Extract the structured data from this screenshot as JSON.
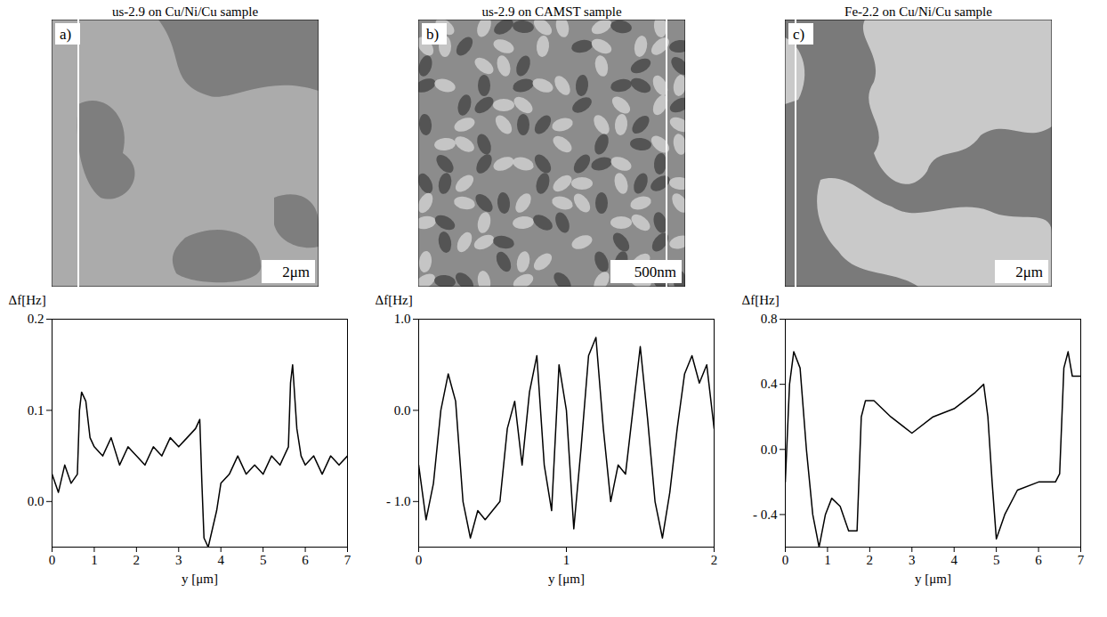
{
  "chart_data": [
    {
      "type": "line",
      "title": "us-2.9 on Cu/Ni/Cu sample",
      "annotations": {
        "panel": "a)",
        "scale_bar": "2μm"
      },
      "xlabel": "y [μm]",
      "ylabel": "Δf[Hz]",
      "color": "#000000",
      "x": [
        0,
        0.15,
        0.3,
        0.45,
        0.6,
        0.65,
        0.7,
        0.8,
        0.9,
        1.0,
        1.2,
        1.4,
        1.6,
        1.8,
        2.0,
        2.2,
        2.4,
        2.6,
        2.8,
        3.0,
        3.2,
        3.4,
        3.5,
        3.55,
        3.6,
        3.7,
        3.8,
        3.9,
        4.0,
        4.2,
        4.4,
        4.6,
        4.8,
        5.0,
        5.2,
        5.4,
        5.6,
        5.65,
        5.7,
        5.8,
        5.9,
        6.0,
        6.2,
        6.4,
        6.6,
        6.8,
        7.0
      ],
      "values": [
        0.03,
        0.01,
        0.04,
        0.02,
        0.03,
        0.1,
        0.12,
        0.11,
        0.07,
        0.06,
        0.05,
        0.07,
        0.04,
        0.06,
        0.05,
        0.04,
        0.06,
        0.05,
        0.07,
        0.06,
        0.07,
        0.08,
        0.09,
        0.02,
        -0.04,
        -0.05,
        -0.03,
        -0.01,
        0.02,
        0.03,
        0.05,
        0.03,
        0.04,
        0.03,
        0.05,
        0.04,
        0.06,
        0.13,
        0.15,
        0.08,
        0.05,
        0.04,
        0.05,
        0.03,
        0.05,
        0.04,
        0.05
      ],
      "xlim": [
        0,
        7
      ],
      "ylim": [
        -0.05,
        0.2
      ],
      "xticks": [
        0,
        1,
        2,
        3,
        4,
        5,
        6,
        7
      ],
      "yticks": [
        {
          "value": 0,
          "label": "0.0"
        },
        0.1,
        0.2
      ]
    },
    {
      "type": "line",
      "title": "us-2.9 on CAMST sample",
      "annotations": {
        "panel": "b)",
        "scale_bar": "500nm"
      },
      "xlabel": "y [μm]",
      "ylabel": "Δf[Hz]",
      "color": "#000000",
      "x": [
        0,
        0.05,
        0.1,
        0.15,
        0.2,
        0.25,
        0.3,
        0.35,
        0.4,
        0.45,
        0.5,
        0.55,
        0.6,
        0.65,
        0.7,
        0.75,
        0.8,
        0.85,
        0.9,
        0.95,
        1.0,
        1.05,
        1.1,
        1.15,
        1.2,
        1.25,
        1.3,
        1.35,
        1.4,
        1.45,
        1.5,
        1.55,
        1.6,
        1.65,
        1.7,
        1.75,
        1.8,
        1.85,
        1.9,
        1.95,
        2.0
      ],
      "values": [
        -0.6,
        -1.2,
        -0.8,
        0.0,
        0.4,
        0.1,
        -1.0,
        -1.4,
        -1.1,
        -1.2,
        -1.1,
        -1.0,
        -0.2,
        0.1,
        -0.6,
        0.2,
        0.6,
        -0.6,
        -1.1,
        0.5,
        0.0,
        -1.3,
        -0.4,
        0.6,
        0.8,
        -0.2,
        -1.0,
        -0.6,
        -0.7,
        0.0,
        0.7,
        -0.1,
        -1.0,
        -1.4,
        -0.9,
        -0.2,
        0.4,
        0.6,
        0.3,
        0.5,
        -0.2
      ],
      "xlim": [
        0,
        2
      ],
      "ylim": [
        -1.5,
        1.0
      ],
      "xticks": [
        0,
        1,
        2
      ],
      "yticks": [
        {
          "value": -1,
          "label": "- 1.0"
        },
        {
          "value": 0,
          "label": "0.0"
        },
        {
          "value": 1,
          "label": "1.0"
        }
      ]
    },
    {
      "type": "line",
      "title": "Fe-2.2 on Cu/Ni/Cu sample",
      "annotations": {
        "panel": "c)",
        "scale_bar": "2μm"
      },
      "xlabel": "y [μm]",
      "ylabel": "Δf[Hz]",
      "color": "#000000",
      "x": [
        0,
        0.1,
        0.2,
        0.35,
        0.5,
        0.65,
        0.8,
        0.95,
        1.1,
        1.3,
        1.5,
        1.7,
        1.8,
        1.9,
        2.1,
        2.5,
        3.0,
        3.5,
        4.0,
        4.5,
        4.7,
        4.8,
        4.9,
        5.0,
        5.2,
        5.5,
        6.0,
        6.4,
        6.5,
        6.6,
        6.7,
        6.8,
        7.0
      ],
      "values": [
        -0.2,
        0.4,
        0.6,
        0.5,
        0.0,
        -0.4,
        -0.6,
        -0.4,
        -0.3,
        -0.35,
        -0.5,
        -0.5,
        0.2,
        0.3,
        0.3,
        0.2,
        0.1,
        0.2,
        0.25,
        0.35,
        0.4,
        0.2,
        -0.2,
        -0.55,
        -0.4,
        -0.25,
        -0.2,
        -0.2,
        -0.15,
        0.5,
        0.6,
        0.45,
        0.45
      ],
      "xlim": [
        0,
        7
      ],
      "ylim": [
        -0.6,
        0.8
      ],
      "xticks": [
        0,
        1,
        2,
        3,
        4,
        5,
        6,
        7
      ],
      "yticks": [
        {
          "value": -0.4,
          "label": "- 0.4"
        },
        {
          "value": 0,
          "label": "0.0"
        },
        0.4,
        0.8
      ]
    }
  ]
}
